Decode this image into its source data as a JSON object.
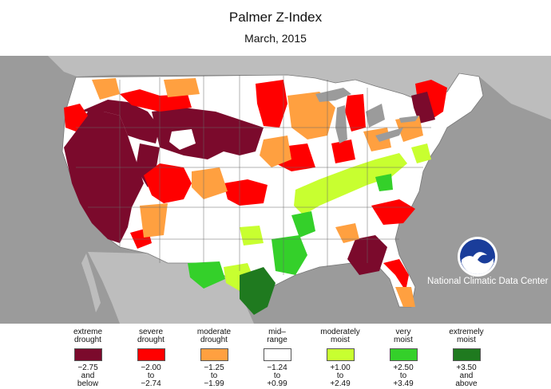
{
  "title": "Palmer Z-Index",
  "subtitle": "March, 2015",
  "agency": "National Climatic Data Center",
  "logo_text": "NOAA",
  "colors": {
    "ocean": "#9b9b9b",
    "land_outside": "#bdbdbd",
    "extreme_drought": "#7b0a2c",
    "severe_drought": "#ff0000",
    "moderate_drought": "#ffa040",
    "mid_range": "#ffffff",
    "moderately_moist": "#c8ff30",
    "very_moist": "#34d02a",
    "extremely_moist": "#1f7a1f"
  },
  "legend": [
    {
      "label1": "extreme",
      "label2": "drought",
      "color": "#7b0a2c",
      "range1": "−2.75",
      "range2": "and",
      "range3": "below"
    },
    {
      "label1": "severe",
      "label2": "drought",
      "color": "#ff0000",
      "range1": "−2.00",
      "range2": "to",
      "range3": "−2.74"
    },
    {
      "label1": "moderate",
      "label2": "drought",
      "color": "#ffa040",
      "range1": "−1.25",
      "range2": "to",
      "range3": "−1.99"
    },
    {
      "label1": "mid–",
      "label2": "range",
      "color": "#ffffff",
      "range1": "−1.24",
      "range2": "to",
      "range3": "+0.99"
    },
    {
      "label1": "moderately",
      "label2": "moist",
      "color": "#c8ff30",
      "range1": "+1.00",
      "range2": "to",
      "range3": "+2.49"
    },
    {
      "label1": "very",
      "label2": "moist",
      "color": "#34d02a",
      "range1": "+2.50",
      "range2": "to",
      "range3": "+3.49"
    },
    {
      "label1": "extremely",
      "label2": "moist",
      "color": "#1f7a1f",
      "range1": "+3.50",
      "range2": "and",
      "range3": "above"
    }
  ]
}
